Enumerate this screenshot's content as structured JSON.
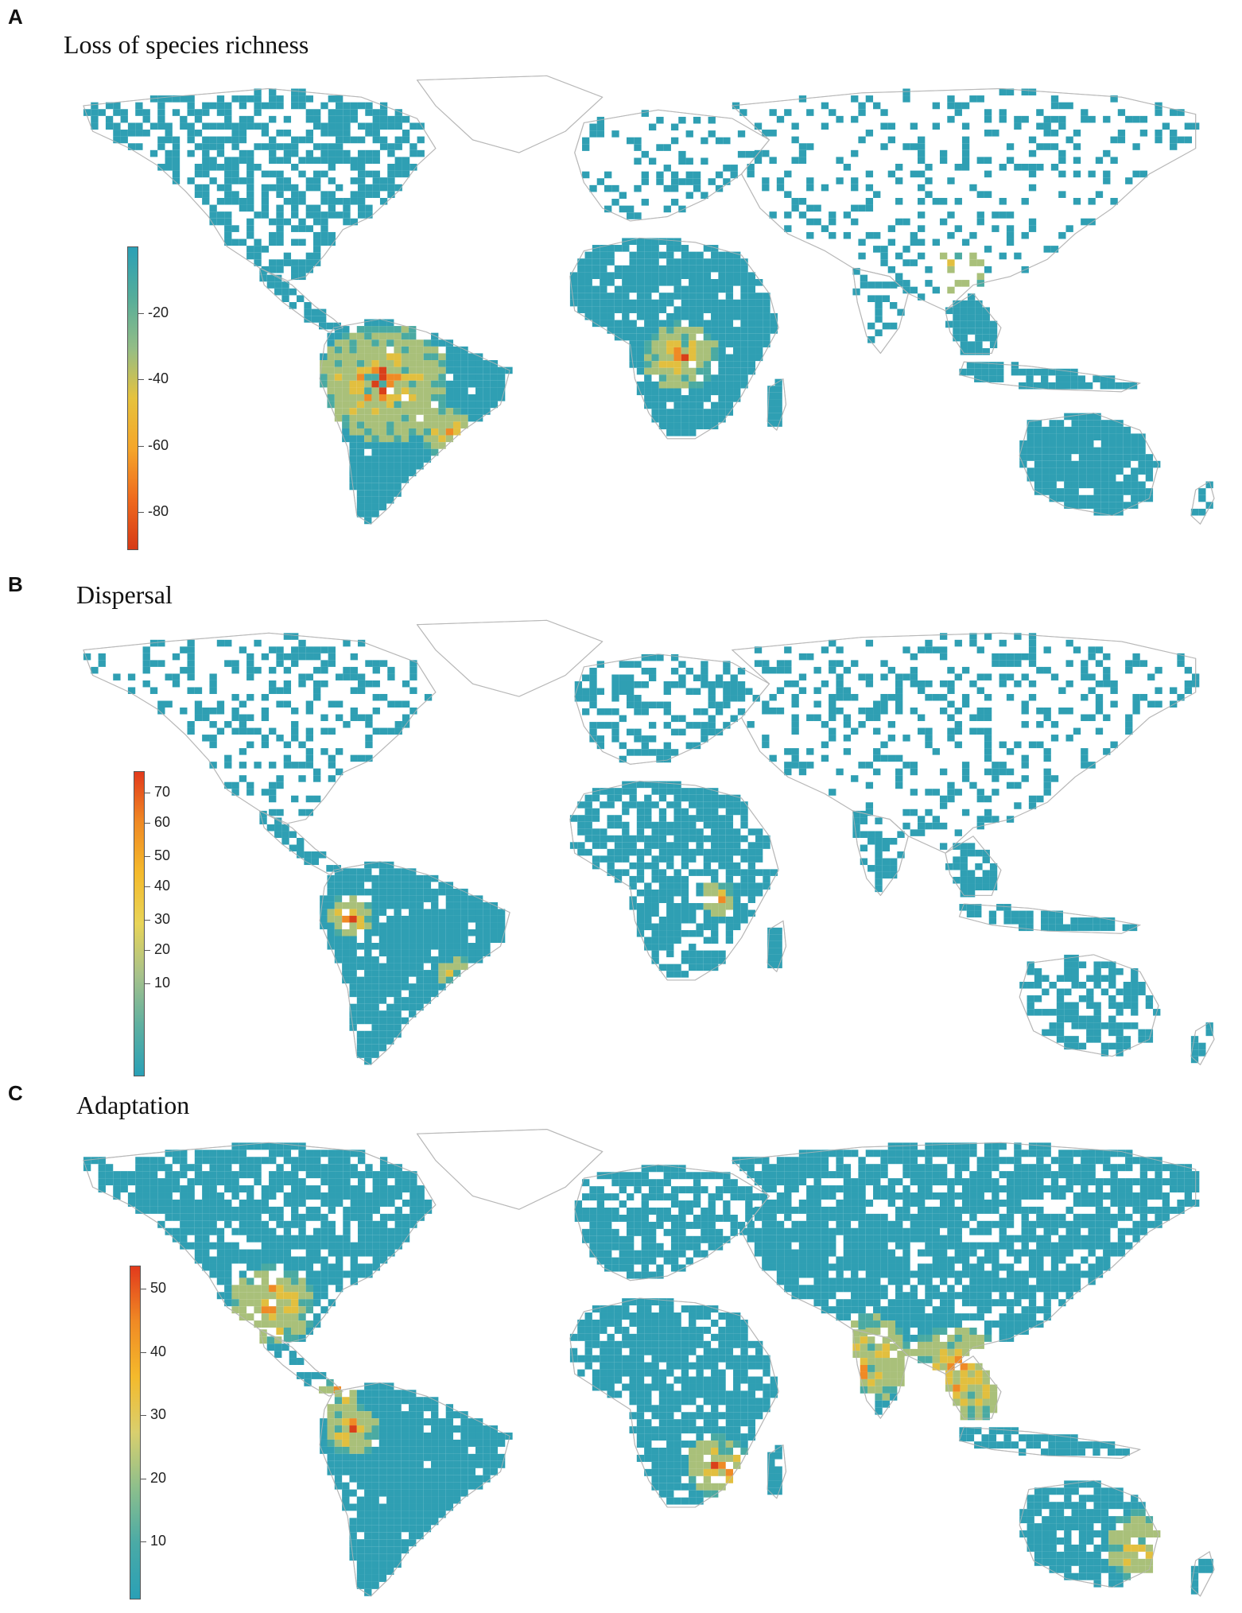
{
  "panels": [
    {
      "letter": "A",
      "title": "Loss of species richness",
      "legend": {
        "ticks": [
          "-20",
          "-40",
          "-60",
          "-80"
        ],
        "gradient": [
          "#2aa0b6",
          "#55ad9a",
          "#93bd86",
          "#e6c23d",
          "#f5a62a",
          "#ef6a1e",
          "#d63a16"
        ]
      }
    },
    {
      "letter": "B",
      "title": "Dispersal",
      "legend": {
        "ticks": [
          "70",
          "60",
          "50",
          "40",
          "30",
          "20",
          "10"
        ],
        "gradient": [
          "#e23a1c",
          "#f08a24",
          "#f4ba2c",
          "#e8d458",
          "#a8c28a",
          "#5fb0a0",
          "#2aa0b6"
        ]
      }
    },
    {
      "letter": "C",
      "title": "Adaptation",
      "legend": {
        "ticks": [
          "50",
          "40",
          "30",
          "20",
          "10"
        ],
        "gradient": [
          "#e23a1c",
          "#f08a24",
          "#f4ba2c",
          "#d9cf6e",
          "#8dbf8c",
          "#4aaaa6",
          "#2aa0b6"
        ]
      }
    }
  ],
  "colors": {
    "teal": "#2f9fb3",
    "teal_mid": "#4aaaa2",
    "green_yellow": "#a9c07a",
    "yellow": "#e2bf3f",
    "orange": "#ef8a25",
    "red": "#d9401a",
    "coast": "#b8b8b8"
  }
}
